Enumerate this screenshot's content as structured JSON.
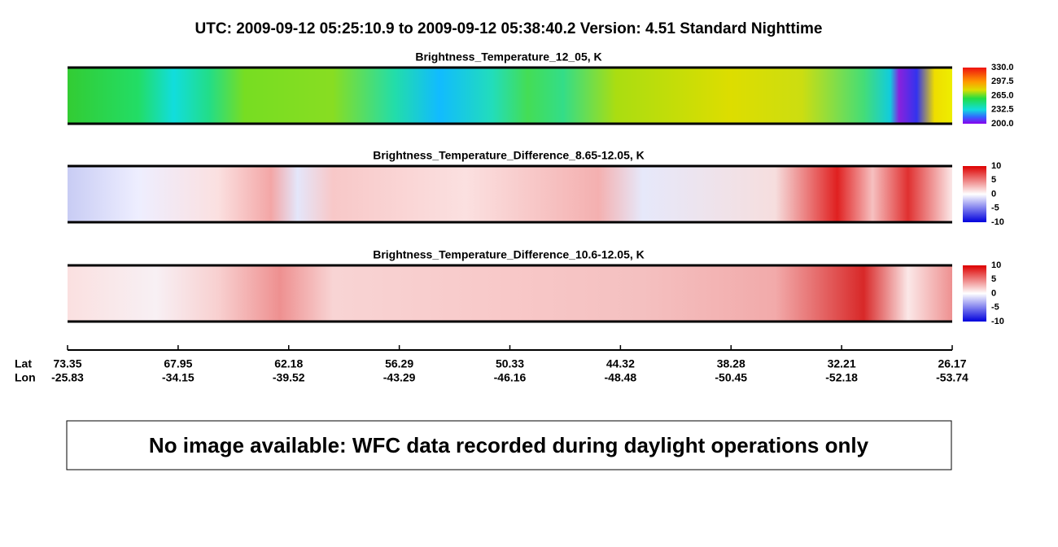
{
  "header": {
    "title": "UTC:  2009-09-12   05:25:10.9  to  2009-09-12   05:38:40.2    Version: 4.51  Standard Nighttime"
  },
  "panels": [
    {
      "title": "Brightness_Temperature_12_05, K",
      "colorbar_labels": [
        "330.0",
        "297.5",
        "265.0",
        "232.5",
        "200.0"
      ]
    },
    {
      "title": "Brightness_Temperature_Difference_8.65-12.05, K",
      "colorbar_labels": [
        "10",
        "5",
        "0",
        "-5",
        "-10"
      ]
    },
    {
      "title": "Brightness_Temperature_Difference_10.6-12.05, K",
      "colorbar_labels": [
        "10",
        "5",
        "0",
        "-5",
        "-10"
      ]
    }
  ],
  "axis": {
    "lat_label": "Lat",
    "lon_label": "Lon",
    "lat": [
      "73.35",
      "67.95",
      "62.18",
      "56.29",
      "50.33",
      "44.32",
      "38.28",
      "32.21",
      "26.17"
    ],
    "lon": [
      "-25.83",
      "-34.15",
      "-39.52",
      "-43.29",
      "-46.16",
      "-48.48",
      "-50.45",
      "-52.18",
      "-53.74"
    ]
  },
  "notice": "No image available: WFC data recorded during daylight operations only"
}
